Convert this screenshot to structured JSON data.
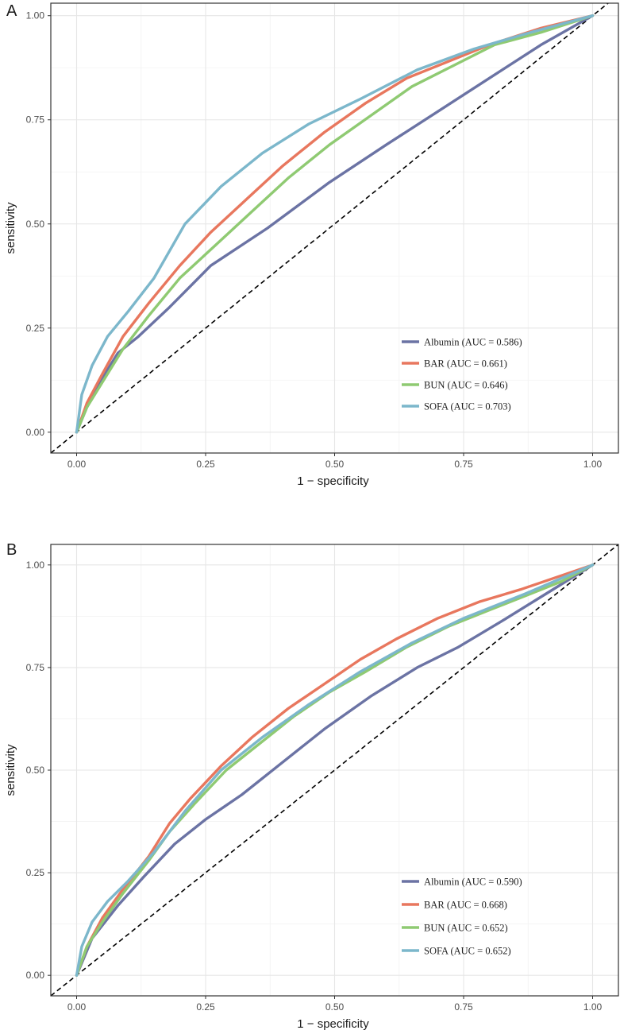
{
  "colors": {
    "Albumin": "#6b73a4",
    "BAR": "#e8775e",
    "BUN": "#8fca72",
    "SOFA": "#7cb7cb"
  },
  "chart_data": [
    {
      "panel": "A",
      "type": "line",
      "xlabel": "1 − specificity",
      "ylabel": "sensitivity",
      "xlim": [
        -0.05,
        1.05
      ],
      "ylim": [
        -0.05,
        1.03
      ],
      "ticks": [
        "0.00",
        "0.25",
        "0.50",
        "0.75",
        "1.00"
      ],
      "tick_values": [
        0,
        0.25,
        0.5,
        0.75,
        1
      ],
      "reference_line": [
        [
          -0.05,
          -0.05
        ],
        [
          1.05,
          1.05
        ]
      ],
      "legend_position": "bottom-right",
      "series": [
        {
          "name": "Albumin",
          "label": "Albumin (AUC = 0.586)",
          "x": [
            0,
            0.02,
            0.05,
            0.08,
            0.12,
            0.18,
            0.26,
            0.37,
            0.49,
            0.6,
            0.7,
            0.8,
            0.9,
            1.0
          ],
          "y": [
            0,
            0.06,
            0.13,
            0.19,
            0.23,
            0.3,
            0.4,
            0.49,
            0.6,
            0.69,
            0.77,
            0.85,
            0.93,
            1.0
          ]
        },
        {
          "name": "BAR",
          "label": "BAR (AUC = 0.661)",
          "x": [
            0,
            0.02,
            0.05,
            0.09,
            0.14,
            0.2,
            0.26,
            0.33,
            0.4,
            0.48,
            0.56,
            0.64,
            0.72,
            0.8,
            0.9,
            1.0
          ],
          "y": [
            0,
            0.07,
            0.14,
            0.23,
            0.31,
            0.4,
            0.48,
            0.56,
            0.64,
            0.72,
            0.79,
            0.85,
            0.89,
            0.93,
            0.97,
            1.0
          ]
        },
        {
          "name": "BUN",
          "label": "BUN (AUC = 0.646)",
          "x": [
            0,
            0.02,
            0.05,
            0.09,
            0.14,
            0.2,
            0.27,
            0.34,
            0.41,
            0.49,
            0.57,
            0.65,
            0.73,
            0.81,
            0.9,
            1.0
          ],
          "y": [
            0,
            0.06,
            0.12,
            0.2,
            0.28,
            0.37,
            0.45,
            0.53,
            0.61,
            0.69,
            0.76,
            0.83,
            0.88,
            0.93,
            0.96,
            1.0
          ]
        },
        {
          "name": "SOFA",
          "label": "SOFA (AUC = 0.703)",
          "x": [
            0,
            0.01,
            0.03,
            0.06,
            0.1,
            0.15,
            0.21,
            0.28,
            0.36,
            0.45,
            0.55,
            0.66,
            0.77,
            0.88,
            1.0
          ],
          "y": [
            0,
            0.09,
            0.16,
            0.23,
            0.29,
            0.37,
            0.5,
            0.59,
            0.67,
            0.74,
            0.8,
            0.87,
            0.92,
            0.96,
            1.0
          ]
        }
      ]
    },
    {
      "panel": "B",
      "type": "line",
      "xlabel": "1 − specificity",
      "ylabel": "sensitivity",
      "xlim": [
        -0.05,
        1.05
      ],
      "ylim": [
        -0.05,
        1.05
      ],
      "ticks": [
        "0.00",
        "0.25",
        "0.50",
        "0.75",
        "1.00"
      ],
      "tick_values": [
        0,
        0.25,
        0.5,
        0.75,
        1
      ],
      "reference_line": [
        [
          -0.05,
          -0.05
        ],
        [
          1.05,
          1.05
        ]
      ],
      "legend_position": "bottom-right",
      "series": [
        {
          "name": "Albumin",
          "label": "Albumin (AUC = 0.590)",
          "x": [
            0,
            0.03,
            0.08,
            0.13,
            0.19,
            0.25,
            0.32,
            0.4,
            0.48,
            0.57,
            0.66,
            0.74,
            0.82,
            0.91,
            1.0
          ],
          "y": [
            0,
            0.09,
            0.17,
            0.24,
            0.32,
            0.38,
            0.44,
            0.52,
            0.6,
            0.68,
            0.75,
            0.8,
            0.86,
            0.93,
            1.0
          ]
        },
        {
          "name": "BAR",
          "label": "BAR (AUC = 0.668)",
          "x": [
            0,
            0.02,
            0.05,
            0.09,
            0.14,
            0.18,
            0.22,
            0.28,
            0.34,
            0.41,
            0.48,
            0.55,
            0.62,
            0.7,
            0.78,
            0.86,
            0.93,
            1.0
          ],
          "y": [
            0,
            0.07,
            0.14,
            0.21,
            0.29,
            0.37,
            0.43,
            0.51,
            0.58,
            0.65,
            0.71,
            0.77,
            0.82,
            0.87,
            0.91,
            0.94,
            0.97,
            1.0
          ]
        },
        {
          "name": "BUN",
          "label": "BUN (AUC = 0.652)",
          "x": [
            0,
            0.02,
            0.05,
            0.09,
            0.14,
            0.18,
            0.23,
            0.29,
            0.35,
            0.42,
            0.49,
            0.56,
            0.64,
            0.72,
            0.8,
            0.88,
            0.94,
            1.0
          ],
          "y": [
            0,
            0.07,
            0.13,
            0.2,
            0.28,
            0.35,
            0.42,
            0.5,
            0.56,
            0.63,
            0.69,
            0.74,
            0.8,
            0.85,
            0.89,
            0.93,
            0.96,
            1.0
          ]
        },
        {
          "name": "SOFA",
          "label": "SOFA (AUC = 0.652)",
          "x": [
            0,
            0.01,
            0.03,
            0.06,
            0.1,
            0.15,
            0.21,
            0.28,
            0.36,
            0.45,
            0.55,
            0.65,
            0.75,
            0.87,
            1.0
          ],
          "y": [
            0,
            0.07,
            0.13,
            0.18,
            0.23,
            0.3,
            0.4,
            0.5,
            0.58,
            0.66,
            0.74,
            0.81,
            0.87,
            0.93,
            1.0
          ]
        }
      ]
    }
  ]
}
